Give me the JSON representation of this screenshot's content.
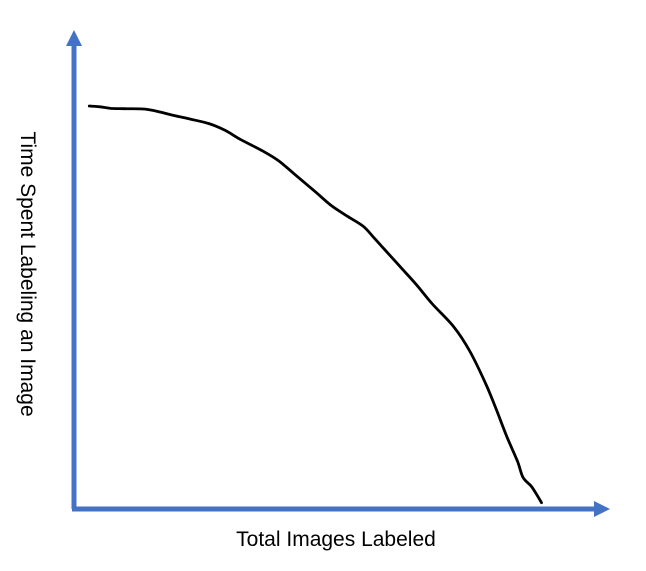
{
  "colors": {
    "axis": "#4472C4",
    "curve": "#000000",
    "background": "#FFFFFF"
  },
  "chart_data": {
    "type": "line",
    "title": "",
    "xlabel": "Total Images Labeled",
    "ylabel": "Time Spent Labeling an Image",
    "x_ticks": false,
    "y_ticks": false,
    "grid": false,
    "legend": "none",
    "xlim": [
      0,
      100
    ],
    "ylim": [
      0,
      100
    ],
    "series": [
      {
        "x": [
          2.5,
          4.5,
          6.5,
          9,
          13,
          16,
          18,
          21,
          25,
          28,
          31,
          35,
          38,
          41,
          45,
          48,
          51,
          54,
          56,
          58,
          61,
          64,
          67,
          71,
          74,
          77,
          79,
          81,
          83,
          84,
          85.5,
          86.5,
          87.5
        ],
        "y": [
          100,
          99.8,
          99.4,
          99.3,
          99.2,
          98.4,
          97.7,
          96.8,
          95.5,
          93.8,
          91.4,
          88.6,
          86.1,
          82.7,
          78.1,
          74.6,
          71.9,
          69.3,
          66.4,
          63.4,
          58.9,
          54.4,
          49.5,
          43.7,
          37.5,
          29.2,
          22.6,
          15.6,
          9.3,
          5.3,
          3.1,
          1.1,
          -1.2
        ]
      }
    ]
  }
}
